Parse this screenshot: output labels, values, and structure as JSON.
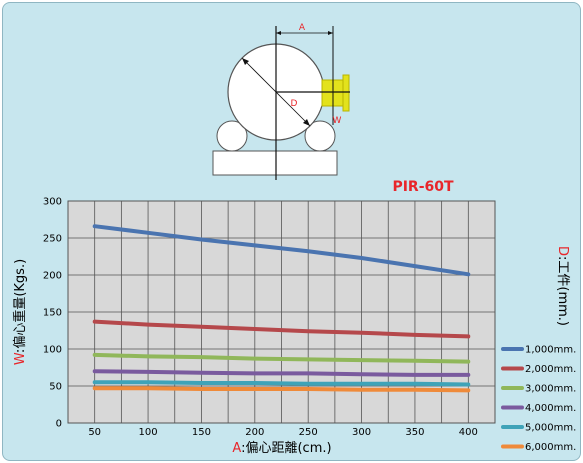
{
  "diagram": {
    "label_a": "A",
    "label_d": "D",
    "label_w": "W"
  },
  "chart_data": {
    "type": "line",
    "title": "PIR-60T",
    "x": [
      50,
      100,
      150,
      200,
      250,
      300,
      350,
      400
    ],
    "xlim": [
      25,
      425
    ],
    "ylim": [
      0,
      300
    ],
    "xticks": [
      "50",
      "100",
      "150",
      "200",
      "250",
      "300",
      "350",
      "400"
    ],
    "yticks": [
      "0",
      "50",
      "100",
      "150",
      "200",
      "250",
      "300"
    ],
    "xlabel_prefix": "A",
    "xlabel_rest": ":偏心距離(cm.)",
    "ylabel_prefix": "W",
    "ylabel_rest": ":偏心重量(Kgs.)",
    "series_label_prefix": "D",
    "series_label_rest": ":工件(mm.)",
    "grid": true,
    "legend": "right",
    "series": [
      {
        "name": "1,000mm.",
        "color": "#4a74b0",
        "values": [
          266,
          257,
          248,
          240,
          232,
          223,
          212,
          201
        ]
      },
      {
        "name": "2,000mm.",
        "color": "#b5484b",
        "values": [
          137,
          133,
          130,
          127,
          124,
          122,
          119,
          117
        ]
      },
      {
        "name": "3,000mm.",
        "color": "#90b75a",
        "values": [
          92,
          90,
          89,
          87,
          86,
          85,
          84,
          83
        ]
      },
      {
        "name": "4,000mm.",
        "color": "#7a5a9e",
        "values": [
          70,
          69,
          68,
          67,
          67,
          66,
          65,
          65
        ]
      },
      {
        "name": "5,000mm.",
        "color": "#3fa3b8",
        "values": [
          55,
          55,
          54,
          54,
          53,
          53,
          53,
          52
        ]
      },
      {
        "name": "6,000mm.",
        "color": "#ef8a3a",
        "values": [
          47,
          47,
          46,
          46,
          46,
          45,
          45,
          44
        ]
      }
    ]
  }
}
